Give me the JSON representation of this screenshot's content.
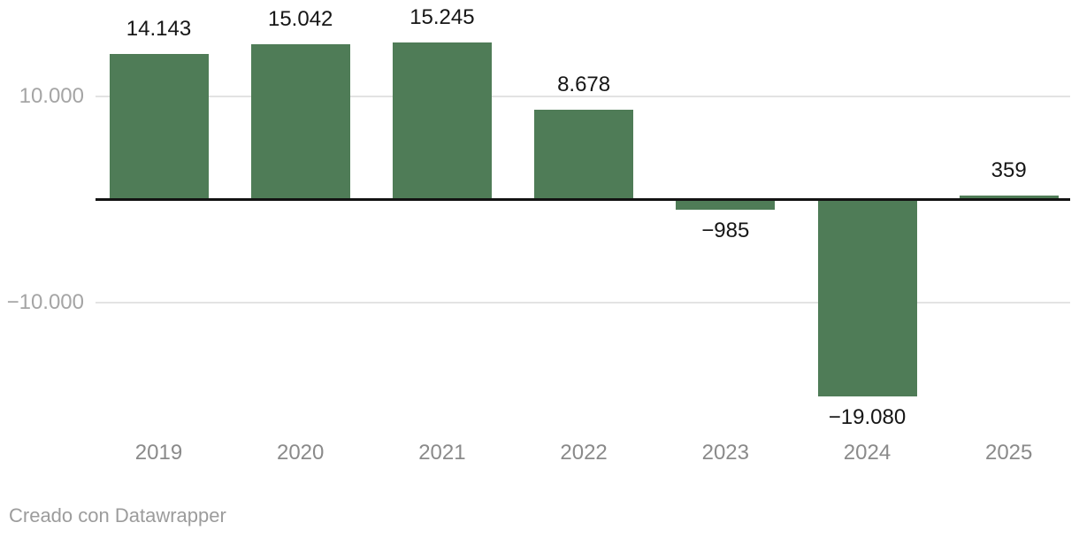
{
  "chart_data": {
    "type": "bar",
    "title": "",
    "xlabel": "",
    "ylabel": "",
    "categories": [
      "2019",
      "2020",
      "2021",
      "2022",
      "2023",
      "2024",
      "2025"
    ],
    "values": [
      14143,
      15042,
      15245,
      8678,
      -985,
      -19080,
      359
    ],
    "value_labels": [
      "14.143",
      "15.042",
      "15.245",
      "8.678",
      "−985",
      "−19.080",
      "359"
    ],
    "y_ticks": [
      {
        "value": 10000,
        "label": "10.000"
      },
      {
        "value": -10000,
        "label": "−10.000"
      }
    ],
    "ylim": [
      -20000,
      17000
    ],
    "baseline_value": 0,
    "grid": "horizontal",
    "legend": "none",
    "bar_color": "#4f7c57",
    "baseline_color": "#131313",
    "gridline_color": "#e3e3e3",
    "value_label_color": "#161616",
    "x_label_color": "#8a8a8a",
    "y_label_color": "#a5a5a5"
  },
  "footer": {
    "attribution": "Creado con Datawrapper"
  }
}
